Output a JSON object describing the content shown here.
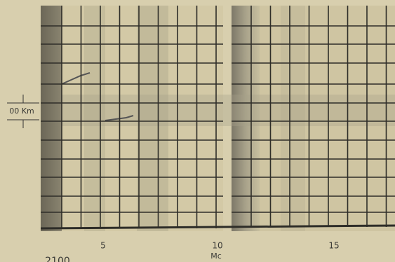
{
  "axis": {
    "ticks": [
      "5",
      "10",
      "15"
    ],
    "label": "Mc"
  },
  "height_marker": "00 Km",
  "record_id": "2100"
}
